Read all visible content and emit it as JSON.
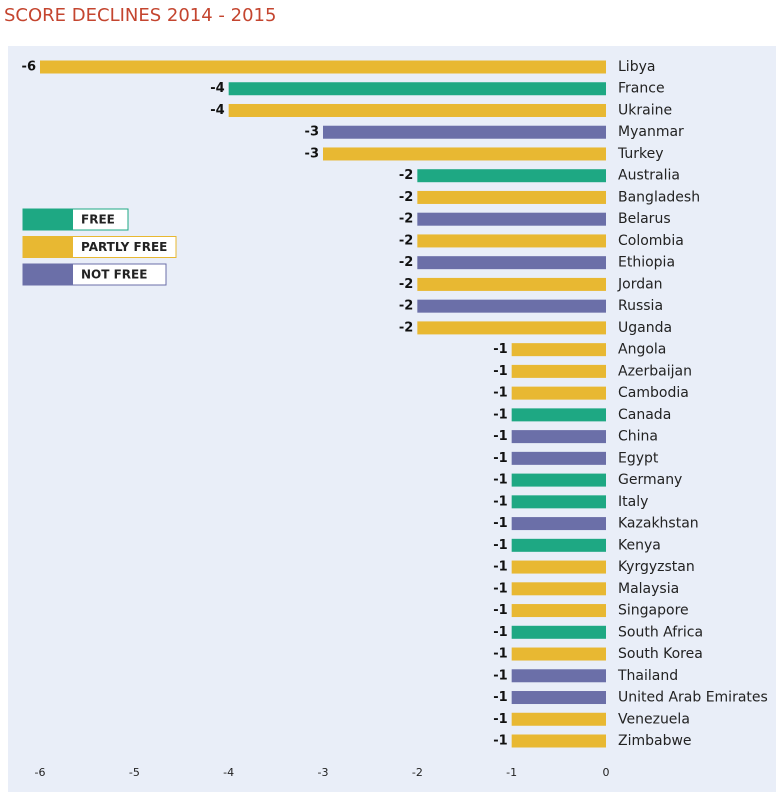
{
  "chart_data": {
    "type": "hbar",
    "title": "SCORE DECLINES 2014 - 2015",
    "categories": [
      "Libya",
      "France",
      "Ukraine",
      "Myanmar",
      "Turkey",
      "Australia",
      "Bangladesh",
      "Belarus",
      "Colombia",
      "Ethiopia",
      "Jordan",
      "Russia",
      "Uganda",
      "Angola",
      "Azerbaijan",
      "Cambodia",
      "Canada",
      "China",
      "Egypt",
      "Germany",
      "Italy",
      "Kazakhstan",
      "Kenya",
      "Kyrgyzstan",
      "Malaysia",
      "Singapore",
      "South Africa",
      "South Korea",
      "Thailand",
      "United Arab Emirates",
      "Venezuela",
      "Zimbabwe"
    ],
    "series": [
      {
        "name": "FREE",
        "color": "#1ea883",
        "values": [
          null,
          -4,
          null,
          null,
          null,
          -2,
          null,
          null,
          null,
          null,
          null,
          null,
          null,
          null,
          null,
          null,
          -1,
          null,
          null,
          -1,
          -1,
          null,
          -1,
          null,
          null,
          null,
          -1,
          null,
          null,
          null,
          null,
          null
        ]
      },
      {
        "name": "PARTLY FREE",
        "color": "#e8b832",
        "values": [
          -6,
          null,
          -4,
          null,
          -3,
          null,
          -2,
          null,
          -2,
          null,
          -2,
          null,
          -2,
          -1,
          -1,
          -1,
          null,
          null,
          null,
          null,
          null,
          null,
          null,
          -1,
          -1,
          -1,
          null,
          -1,
          null,
          null,
          -1,
          -1
        ]
      },
      {
        "name": "NOT FREE",
        "color": "#6b6fa8",
        "values": [
          null,
          null,
          null,
          -3,
          null,
          null,
          null,
          -2,
          null,
          -2,
          null,
          -2,
          null,
          null,
          null,
          null,
          null,
          -1,
          -1,
          null,
          null,
          -1,
          null,
          null,
          null,
          null,
          null,
          null,
          -1,
          -1,
          null,
          null
        ]
      }
    ],
    "xlim": [
      -6,
      0
    ],
    "xticks": [
      -6,
      -5,
      -4,
      -3,
      -2,
      -1,
      0
    ]
  }
}
